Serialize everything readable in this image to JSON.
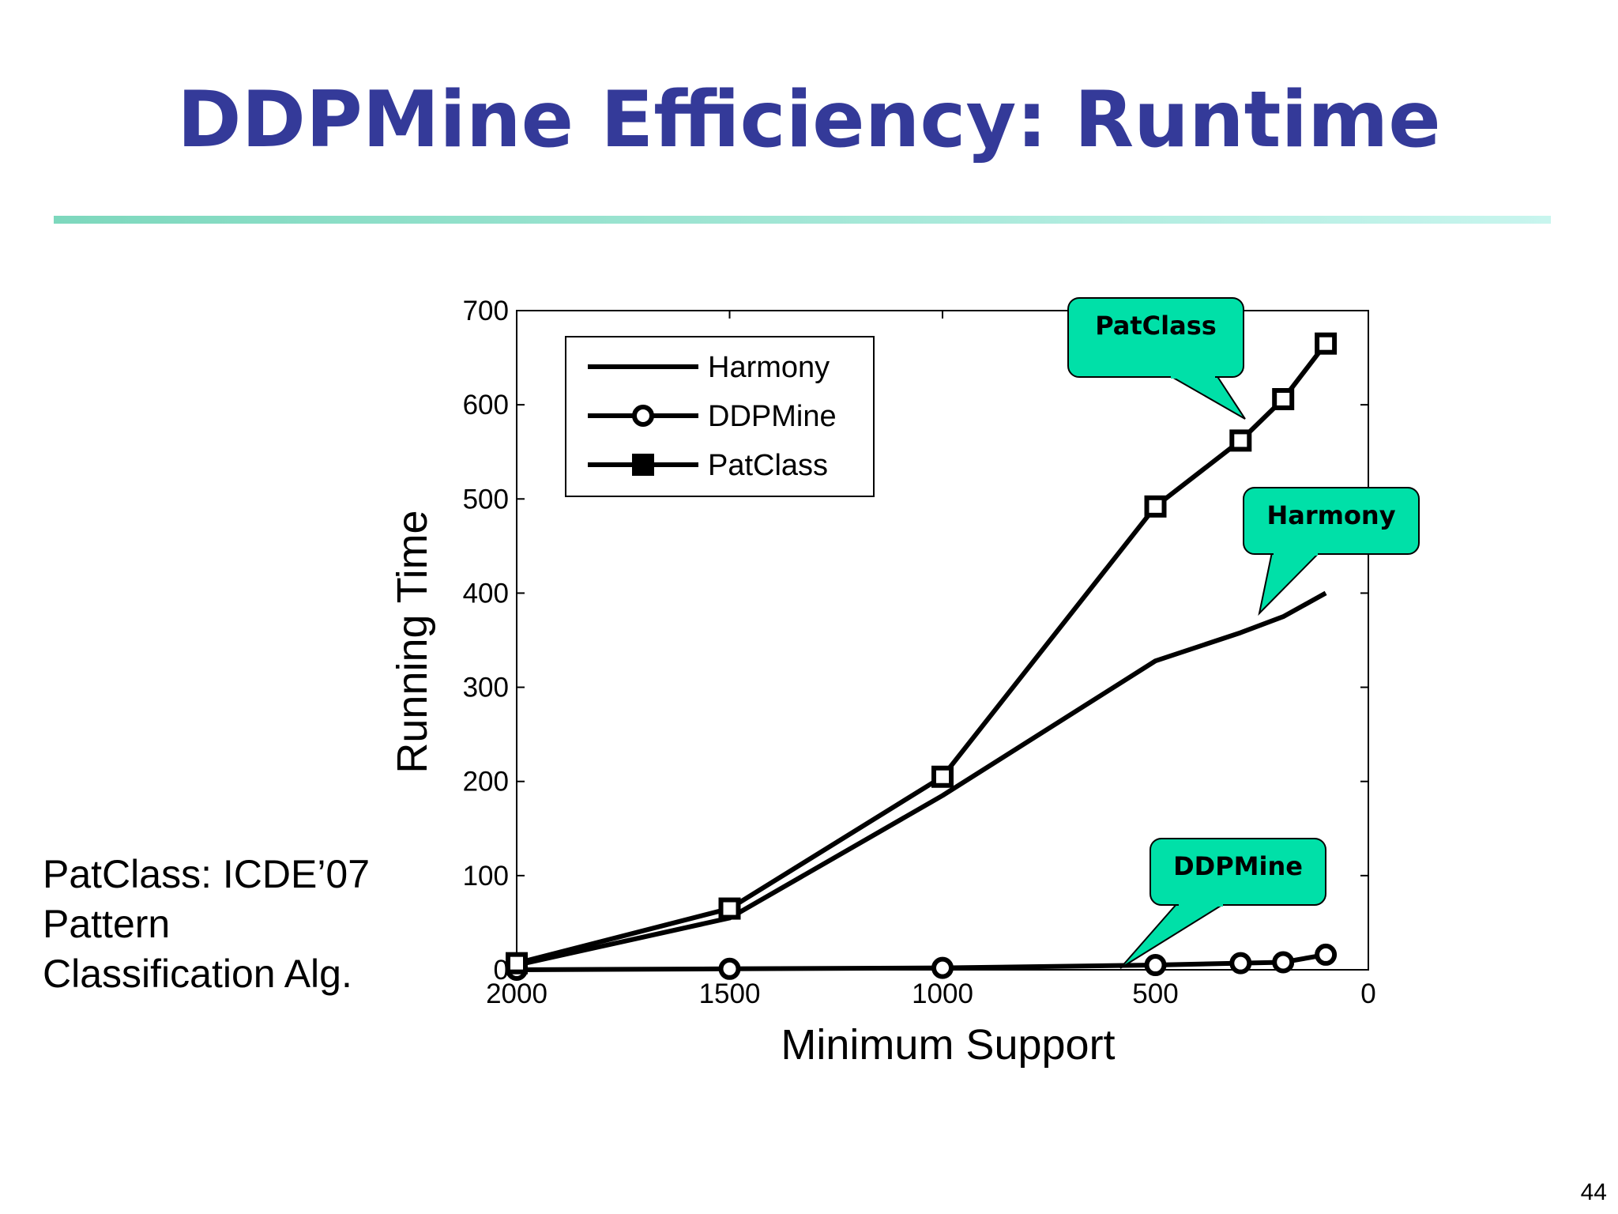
{
  "slide": {
    "title": "DDPMine Efficiency: Runtime",
    "page_number": "44",
    "side_note": [
      "PatClass: ICDE’07",
      "Pattern",
      "Classification Alg."
    ]
  },
  "colors": {
    "title": "#343a99",
    "rule": "#7dd8bd",
    "callout_fill": "#00e0a8",
    "series": "#000000"
  },
  "chart_data": {
    "type": "line",
    "xlabel": "Minimum Support",
    "ylabel": "Running Time",
    "xlim": [
      2000,
      0
    ],
    "ylim": [
      0,
      700
    ],
    "x_reversed": true,
    "x_ticks": [
      "2000",
      "1500",
      "1000",
      "500",
      "0"
    ],
    "y_ticks": [
      "0",
      "100",
      "200",
      "300",
      "400",
      "500",
      "600",
      "700"
    ],
    "legend_position": "top-left",
    "grid": false,
    "series": [
      {
        "name": "Harmony",
        "marker": "none",
        "x": [
          2000,
          1500,
          1000,
          500,
          300,
          200,
          100
        ],
        "y": [
          5,
          55,
          185,
          328,
          358,
          375,
          400
        ]
      },
      {
        "name": "DDPMine",
        "marker": "circle",
        "x": [
          2000,
          1500,
          1000,
          500,
          300,
          200,
          100
        ],
        "y": [
          0,
          1,
          2,
          5,
          7,
          8,
          16
        ]
      },
      {
        "name": "PatClass",
        "marker": "square",
        "x": [
          2000,
          1500,
          1000,
          500,
          300,
          200,
          100
        ],
        "y": [
          7,
          65,
          205,
          492,
          562,
          606,
          665
        ]
      }
    ],
    "callouts": [
      {
        "label": "PatClass",
        "series": "PatClass"
      },
      {
        "label": "Harmony",
        "series": "Harmony"
      },
      {
        "label": "DDPMine",
        "series": "DDPMine"
      }
    ]
  }
}
